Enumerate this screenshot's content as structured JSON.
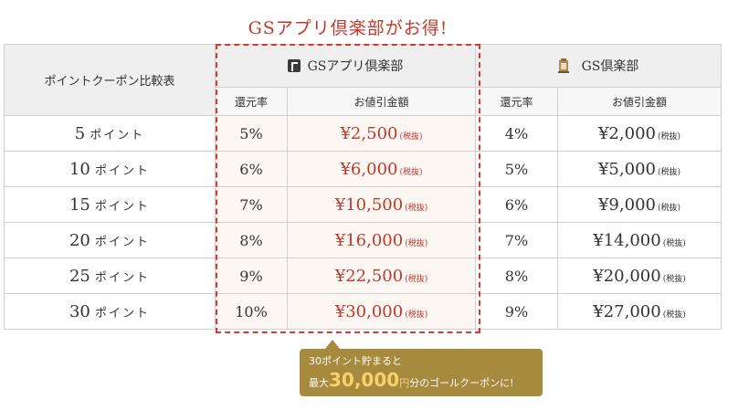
{
  "headline": "GSアプリ倶楽部がお得!",
  "table": {
    "corner_label": "ポイントクーポン比較表",
    "group_app": "GSアプリ倶楽部",
    "group_gs": "GS倶楽部",
    "sub_rate": "還元率",
    "sub_amount": "お値引金額",
    "tax_label": "(税抜)",
    "point_unit": "ポイント",
    "rows": [
      {
        "points": "5",
        "app_rate": "5%",
        "app_amount": "¥2,500",
        "gs_rate": "4%",
        "gs_amount": "¥2,000"
      },
      {
        "points": "10",
        "app_rate": "6%",
        "app_amount": "¥6,000",
        "gs_rate": "5%",
        "gs_amount": "¥5,000"
      },
      {
        "points": "15",
        "app_rate": "7%",
        "app_amount": "¥10,500",
        "gs_rate": "6%",
        "gs_amount": "¥9,000"
      },
      {
        "points": "20",
        "app_rate": "8%",
        "app_amount": "¥16,000",
        "gs_rate": "7%",
        "gs_amount": "¥14,000"
      },
      {
        "points": "25",
        "app_rate": "9%",
        "app_amount": "¥22,500",
        "gs_rate": "8%",
        "gs_amount": "¥20,000"
      },
      {
        "points": "30",
        "app_rate": "10%",
        "app_amount": "¥30,000",
        "gs_rate": "9%",
        "gs_amount": "¥27,000"
      }
    ]
  },
  "callout": {
    "line1": "30ポイント貯まると",
    "prefix": "最大",
    "amount": "30,000",
    "yen": "円",
    "suffix": "分のゴールクーポンに!"
  },
  "colors": {
    "accent_red": "#c0392b",
    "gold": "#a88a3e",
    "highlight_yellow": "#f5d36a"
  },
  "icons": {
    "app_logo": "app-logo-icon",
    "gs_crest": "crest-icon"
  }
}
